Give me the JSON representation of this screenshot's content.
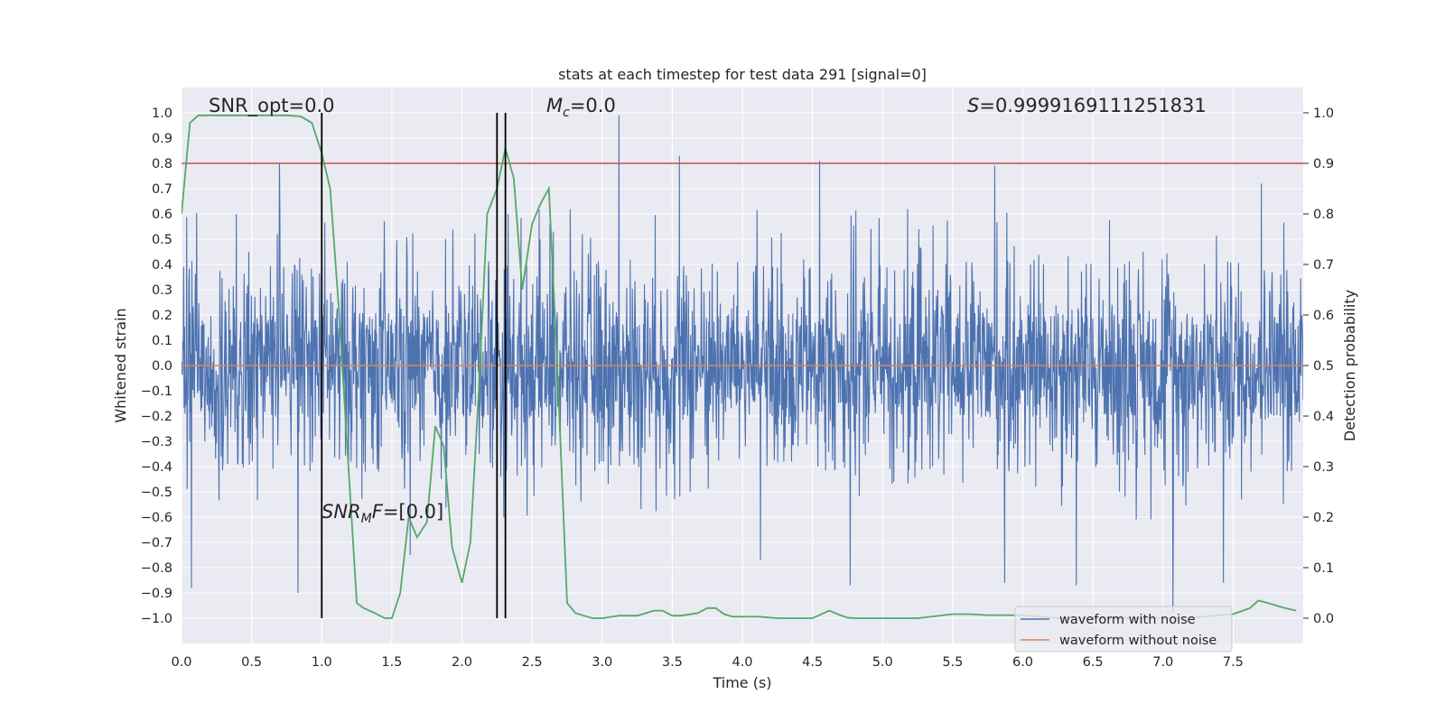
{
  "chart_data": {
    "type": "line",
    "title": "stats at each timestep for test data 291 [signal=0]",
    "xlabel": "Time (s)",
    "ylabel": "Whitened strain",
    "y2label": "Detection probability",
    "xlim": [
      0.0,
      8.0
    ],
    "ylim": [
      -1.1,
      1.1
    ],
    "y2lim": [
      -0.05,
      1.05
    ],
    "x_ticks": [
      0.0,
      0.5,
      1.0,
      1.5,
      2.0,
      2.5,
      3.0,
      3.5,
      4.0,
      4.5,
      5.0,
      5.5,
      6.0,
      6.5,
      7.0,
      7.5
    ],
    "x_tick_labels": [
      "0.0",
      "0.5",
      "1.0",
      "1.5",
      "2.0",
      "2.5",
      "3.0",
      "3.5",
      "4.0",
      "4.5",
      "5.0",
      "5.5",
      "6.0",
      "6.5",
      "7.0",
      "7.5"
    ],
    "y_ticks": [
      1.0,
      0.9,
      0.8,
      0.7,
      0.6,
      0.5,
      0.4,
      0.3,
      0.2,
      0.1,
      0.0,
      -0.1,
      -0.2,
      -0.3,
      -0.4,
      -0.5,
      -0.6,
      -0.7,
      -0.8,
      -0.9,
      -1.0
    ],
    "y_tick_labels": [
      "1.0",
      "0.9",
      "0.8",
      "0.7",
      "0.6",
      "0.5",
      "0.4",
      "0.3",
      "0.2",
      "0.1",
      "0.0",
      "−0.1",
      "−0.2",
      "−0.3",
      "−0.4",
      "−0.5",
      "−0.6",
      "−0.7",
      "−0.8",
      "−0.9",
      "−1.0"
    ],
    "y2_ticks": [
      1.0,
      0.9,
      0.8,
      0.7,
      0.6,
      0.5,
      0.4,
      0.3,
      0.2,
      0.1,
      0.0
    ],
    "y2_tick_labels": [
      "1.0",
      "0.9",
      "0.8",
      "0.7",
      "0.6",
      "0.5",
      "0.4",
      "0.3",
      "0.2",
      "0.1",
      "0.0"
    ],
    "grid": true,
    "legend_position": "lower-right",
    "series": [
      {
        "name": "waveform with noise",
        "axis": "left",
        "color": "#4c72b0",
        "style": "dense-noise",
        "typical_envelope": [
          -0.2,
          0.2
        ],
        "peaks": [
          {
            "x": 0.07,
            "y": -0.88
          },
          {
            "x": 0.7,
            "y": 0.8
          },
          {
            "x": 0.83,
            "y": -0.9
          },
          {
            "x": 1.63,
            "y": -0.75
          },
          {
            "x": 2.33,
            "y": 0.6
          },
          {
            "x": 3.12,
            "y": 0.99
          },
          {
            "x": 3.55,
            "y": 0.83
          },
          {
            "x": 4.13,
            "y": -0.77
          },
          {
            "x": 4.55,
            "y": 0.81
          },
          {
            "x": 4.77,
            "y": -0.87
          },
          {
            "x": 5.8,
            "y": 0.79
          },
          {
            "x": 5.87,
            "y": -0.86
          },
          {
            "x": 6.38,
            "y": -0.87
          },
          {
            "x": 7.07,
            "y": -0.98
          },
          {
            "x": 7.43,
            "y": -0.86
          },
          {
            "x": 7.7,
            "y": 0.72
          }
        ]
      },
      {
        "name": "waveform without noise",
        "axis": "left",
        "color": "#dd8452",
        "x": [
          0.0,
          8.0
        ],
        "y": [
          0.0,
          0.0
        ]
      },
      {
        "name": "",
        "axis": "right",
        "color": "#55a868",
        "x": [
          0.0,
          0.06,
          0.12,
          0.25,
          0.5,
          0.75,
          0.85,
          0.93,
          1.0,
          1.06,
          1.12,
          1.25,
          1.3,
          1.38,
          1.45,
          1.5,
          1.56,
          1.62,
          1.68,
          1.75,
          1.81,
          1.87,
          1.93,
          2.0,
          2.06,
          2.12,
          2.18,
          2.25,
          2.31,
          2.37,
          2.43,
          2.5,
          2.56,
          2.62,
          2.68,
          2.75,
          2.81,
          2.87,
          2.93,
          3.0,
          3.12,
          3.25,
          3.37,
          3.43,
          3.5,
          3.56,
          3.68,
          3.75,
          3.81,
          3.87,
          3.93,
          4.0,
          4.12,
          4.25,
          4.37,
          4.5,
          4.62,
          4.68,
          4.75,
          4.81,
          4.87,
          4.93,
          5.0,
          5.25,
          5.5,
          5.62,
          5.75,
          6.0,
          6.25,
          6.5,
          6.75,
          7.0,
          7.25,
          7.5,
          7.62,
          7.68,
          7.75,
          7.81,
          7.87,
          7.95
        ],
        "y": [
          0.8,
          0.98,
          0.995,
          0.995,
          0.995,
          0.995,
          0.993,
          0.98,
          0.92,
          0.85,
          0.62,
          0.03,
          0.02,
          0.01,
          0.0,
          0.0,
          0.05,
          0.2,
          0.16,
          0.19,
          0.38,
          0.34,
          0.14,
          0.07,
          0.15,
          0.45,
          0.8,
          0.85,
          0.93,
          0.87,
          0.65,
          0.78,
          0.82,
          0.85,
          0.5,
          0.03,
          0.01,
          0.005,
          0.0,
          0.0,
          0.005,
          0.005,
          0.015,
          0.015,
          0.005,
          0.005,
          0.01,
          0.02,
          0.02,
          0.008,
          0.003,
          0.003,
          0.003,
          0.0,
          0.0,
          0.0,
          0.015,
          0.008,
          0.001,
          0.0,
          0.0,
          0.0,
          0.0,
          0.0,
          0.008,
          0.008,
          0.006,
          0.006,
          0.0,
          0.0,
          0.0,
          0.0,
          0.002,
          0.008,
          0.02,
          0.035,
          0.03,
          0.025,
          0.02,
          0.015
        ]
      }
    ],
    "threshold_line": {
      "axis": "right",
      "y": 0.9,
      "color": "#c44e52"
    },
    "vertical_lines": [
      {
        "x": 1.0,
        "y": [
          -1.0,
          1.0
        ],
        "color": "#000000"
      },
      {
        "x": 2.25,
        "y": [
          -1.0,
          1.0
        ],
        "color": "#000000"
      },
      {
        "x": 2.31,
        "y": [
          -1.0,
          1.0
        ],
        "color": "#000000"
      }
    ],
    "annotations": {
      "snr_opt": "SNR_opt=0.0",
      "mc_symbol": "M",
      "mc_sub": "c",
      "mc_value": "=0.0",
      "s_symbol": "S",
      "s_value": "=0.9999169111251831",
      "snr_mf_symbol": "SNR",
      "snr_mf_sub": "M",
      "snr_mf_tail": "F",
      "snr_mf_value": "=[0.0]"
    }
  }
}
